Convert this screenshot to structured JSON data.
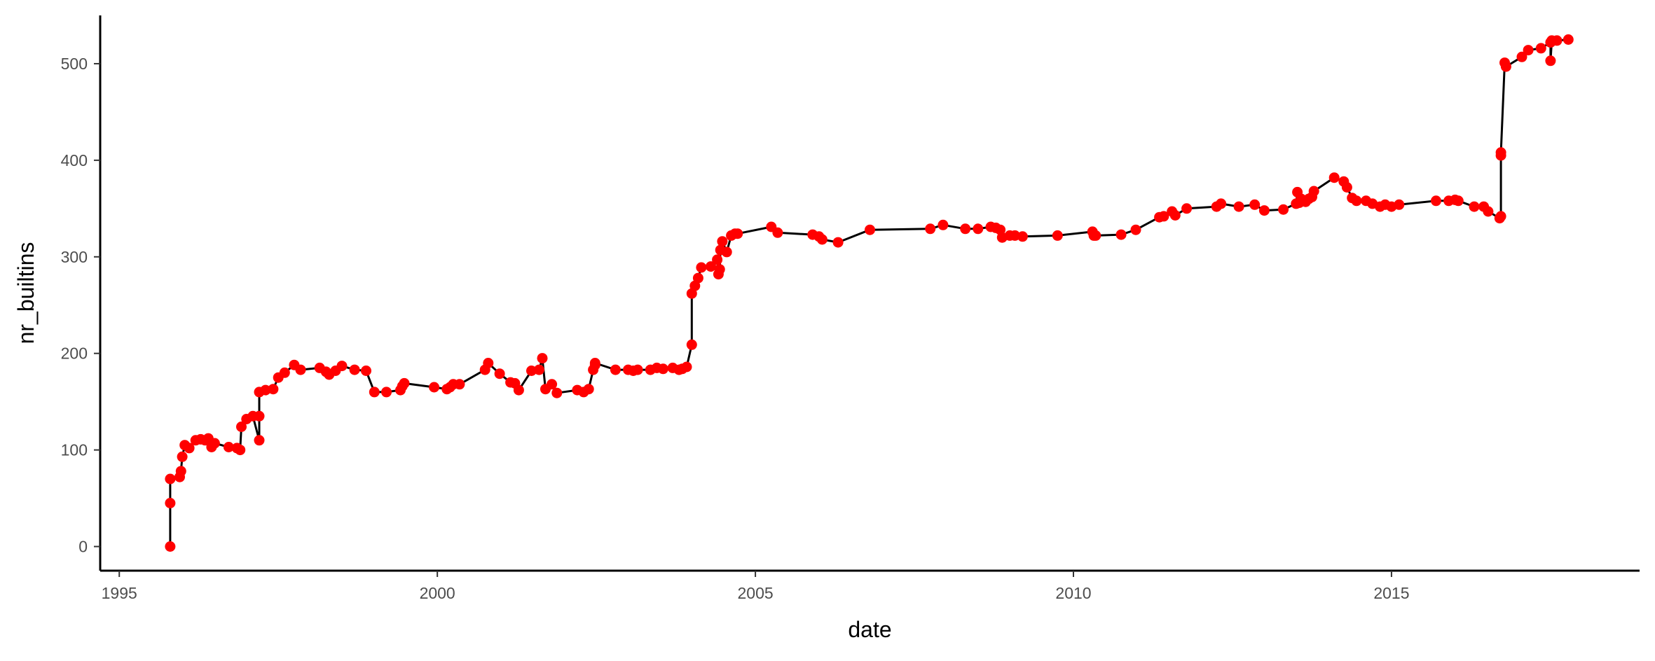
{
  "chart_data": {
    "type": "line",
    "xlabel": "date",
    "ylabel": "nr_builtins",
    "xlim": [
      1994.7,
      2018.9
    ],
    "ylim": [
      -25,
      550
    ],
    "x_ticks": [
      1995,
      2000,
      2005,
      2010,
      2015
    ],
    "y_ticks": [
      0,
      100,
      200,
      300,
      400,
      500
    ],
    "grid": false,
    "legend": "none",
    "line_color": "#000000",
    "point_color": "#ff0000",
    "series": [
      {
        "x": [
          1995.8,
          1995.8,
          1995.8,
          1995.95,
          1995.97,
          1995.99,
          1996.03,
          1996.1,
          1996.2,
          1996.28,
          1996.35,
          1996.4,
          1996.45,
          1996.5,
          1996.72,
          1996.85,
          1996.9,
          1996.92,
          1997.0,
          1997.1,
          1997.2,
          1997.2,
          1997.2,
          1997.3,
          1997.42,
          1997.5,
          1997.6,
          1997.75,
          1997.85,
          1998.15,
          1998.25,
          1998.3,
          1998.4,
          1998.5,
          1998.7,
          1998.88,
          1999.01,
          1999.2,
          1999.42,
          1999.45,
          1999.48,
          1999.95,
          2000.15,
          2000.2,
          2000.25,
          2000.35,
          2000.75,
          2000.8,
          2000.98,
          2001.15,
          2001.22,
          2001.28,
          2001.48,
          2001.6,
          2001.65,
          2001.7,
          2001.8,
          2001.88,
          2002.2,
          2002.3,
          2002.38,
          2002.45,
          2002.48,
          2002.48,
          2002.8,
          2003.0,
          2003.08,
          2003.15,
          2003.35,
          2003.45,
          2003.55,
          2003.7,
          2003.8,
          2003.85,
          2003.92,
          2004.0,
          2004.0,
          2004.05,
          2004.1,
          2004.15,
          2004.3,
          2004.4,
          2004.42,
          2004.44,
          2004.45,
          2004.48,
          2004.55,
          2004.62,
          2004.68,
          2004.72,
          2005.25,
          2005.35,
          2005.9,
          2006.0,
          2006.05,
          2006.3,
          2006.8,
          2007.75,
          2007.95,
          2008.3,
          2008.5,
          2008.7,
          2008.78,
          2008.85,
          2008.88,
          2009.0,
          2009.08,
          2009.2,
          2009.75,
          2010.3,
          2010.32,
          2010.35,
          2010.75,
          2010.98,
          2011.35,
          2011.42,
          2011.55,
          2011.6,
          2011.78,
          2012.25,
          2012.32,
          2012.6,
          2012.85,
          2013.0,
          2013.3,
          2013.5,
          2013.52,
          2013.55,
          2013.58,
          2013.65,
          2013.7,
          2013.75,
          2013.78,
          2014.1,
          2014.25,
          2014.3,
          2014.38,
          2014.45,
          2014.6,
          2014.7,
          2014.82,
          2014.9,
          2015.0,
          2015.12,
          2015.7,
          2015.9,
          2016.0,
          2016.05,
          2016.3,
          2016.45,
          2016.52,
          2016.7,
          2016.72,
          2016.72,
          2016.72,
          2016.78,
          2016.8,
          2017.05,
          2017.15,
          2017.35,
          2017.5,
          2017.5,
          2017.52,
          2017.6,
          2017.78
        ],
        "y": [
          0,
          45,
          70,
          72,
          78,
          93,
          105,
          102,
          110,
          111,
          110,
          112,
          103,
          107,
          103,
          102,
          100,
          124,
          132,
          135,
          110,
          135,
          160,
          162,
          163,
          175,
          180,
          188,
          183,
          185,
          181,
          178,
          182,
          187,
          183,
          182,
          160,
          160,
          162,
          166,
          169,
          165,
          163,
          165,
          168,
          168,
          183,
          190,
          179,
          170,
          169,
          162,
          182,
          183,
          195,
          163,
          168,
          159,
          162,
          160,
          163,
          183,
          188,
          190,
          183,
          183,
          182,
          183,
          183,
          185,
          184,
          185,
          183,
          184,
          186,
          209,
          262,
          270,
          278,
          289,
          290,
          297,
          282,
          287,
          307,
          316,
          305,
          322,
          324,
          324,
          331,
          325,
          323,
          321,
          318,
          315,
          328,
          329,
          333,
          329,
          329,
          331,
          330,
          328,
          320,
          322,
          322,
          321,
          322,
          326,
          322,
          322,
          323,
          328,
          341,
          342,
          347,
          343,
          350,
          352,
          355,
          352,
          354,
          348,
          349,
          355,
          367,
          356,
          360,
          357,
          360,
          362,
          368,
          382,
          378,
          372,
          361,
          358,
          358,
          355,
          352,
          354,
          352,
          354,
          358,
          358,
          359,
          358,
          352,
          352,
          347,
          340,
          342,
          405,
          408,
          501,
          497,
          507,
          514,
          516,
          522,
          503,
          524,
          524,
          525
        ]
      }
    ]
  }
}
